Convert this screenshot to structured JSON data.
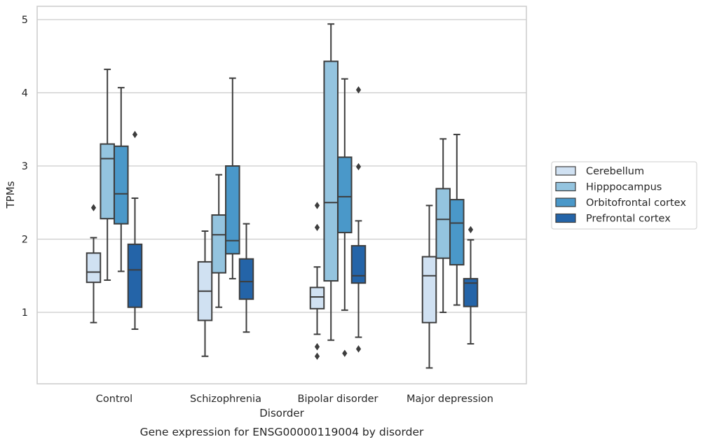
{
  "chart_data": {
    "type": "boxplot",
    "caption": "Gene expression for ENSG00000119004 by disorder",
    "xlabel": "Disorder",
    "ylabel": "TPMs",
    "ylim": [
      0,
      5.2
    ],
    "yticks": [
      1,
      2,
      3,
      4,
      5
    ],
    "grid": "horizontal",
    "legend_position": "right",
    "categories": [
      "Control",
      "Schizophrenia",
      "Bipolar disorder",
      "Major depression"
    ],
    "series": [
      {
        "name": "Cerebellum",
        "color": "#d0e1f2",
        "boxes": [
          {
            "whisker_low": 0.86,
            "q1": 1.41,
            "median": 1.55,
            "q3": 1.81,
            "whisker_high": 2.02,
            "outliers": [
              2.43
            ]
          },
          {
            "whisker_low": 0.4,
            "q1": 0.89,
            "median": 1.29,
            "q3": 1.69,
            "whisker_high": 2.11,
            "outliers": []
          },
          {
            "whisker_low": 0.7,
            "q1": 1.05,
            "median": 1.21,
            "q3": 1.34,
            "whisker_high": 1.62,
            "outliers": [
              2.46,
              2.16,
              0.53,
              0.4
            ]
          },
          {
            "whisker_low": 0.24,
            "q1": 0.86,
            "median": 1.5,
            "q3": 1.76,
            "whisker_high": 2.46,
            "outliers": []
          }
        ]
      },
      {
        "name": "Hipppocampus",
        "color": "#94c4df",
        "boxes": [
          {
            "whisker_low": 1.44,
            "q1": 2.28,
            "median": 3.1,
            "q3": 3.3,
            "whisker_high": 4.32,
            "outliers": []
          },
          {
            "whisker_low": 1.07,
            "q1": 1.54,
            "median": 2.06,
            "q3": 2.33,
            "whisker_high": 2.88,
            "outliers": []
          },
          {
            "whisker_low": 0.62,
            "q1": 1.43,
            "median": 2.5,
            "q3": 4.43,
            "whisker_high": 4.94,
            "outliers": []
          },
          {
            "whisker_low": 1.0,
            "q1": 1.74,
            "median": 2.27,
            "q3": 2.69,
            "whisker_high": 3.37,
            "outliers": []
          }
        ]
      },
      {
        "name": "Orbitofrontal cortex",
        "color": "#4a98c9",
        "boxes": [
          {
            "whisker_low": 1.56,
            "q1": 2.21,
            "median": 2.62,
            "q3": 3.27,
            "whisker_high": 4.07,
            "outliers": []
          },
          {
            "whisker_low": 1.46,
            "q1": 1.8,
            "median": 1.98,
            "q3": 3.0,
            "whisker_high": 4.2,
            "outliers": []
          },
          {
            "whisker_low": 1.03,
            "q1": 2.09,
            "median": 2.58,
            "q3": 3.12,
            "whisker_high": 4.19,
            "outliers": [
              0.44
            ]
          },
          {
            "whisker_low": 1.1,
            "q1": 1.65,
            "median": 2.22,
            "q3": 2.54,
            "whisker_high": 3.43,
            "outliers": []
          }
        ]
      },
      {
        "name": "Prefrontal cortex",
        "color": "#2464a8",
        "boxes": [
          {
            "whisker_low": 0.77,
            "q1": 1.07,
            "median": 1.58,
            "q3": 1.93,
            "whisker_high": 2.56,
            "outliers": [
              3.43
            ]
          },
          {
            "whisker_low": 0.73,
            "q1": 1.18,
            "median": 1.42,
            "q3": 1.73,
            "whisker_high": 2.21,
            "outliers": []
          },
          {
            "whisker_low": 0.66,
            "q1": 1.4,
            "median": 1.5,
            "q3": 1.91,
            "whisker_high": 2.25,
            "outliers": [
              4.04,
              2.99,
              0.5
            ]
          },
          {
            "whisker_low": 0.57,
            "q1": 1.08,
            "median": 1.4,
            "q3": 1.46,
            "whisker_high": 1.99,
            "outliers": [
              2.13
            ]
          }
        ]
      }
    ]
  }
}
